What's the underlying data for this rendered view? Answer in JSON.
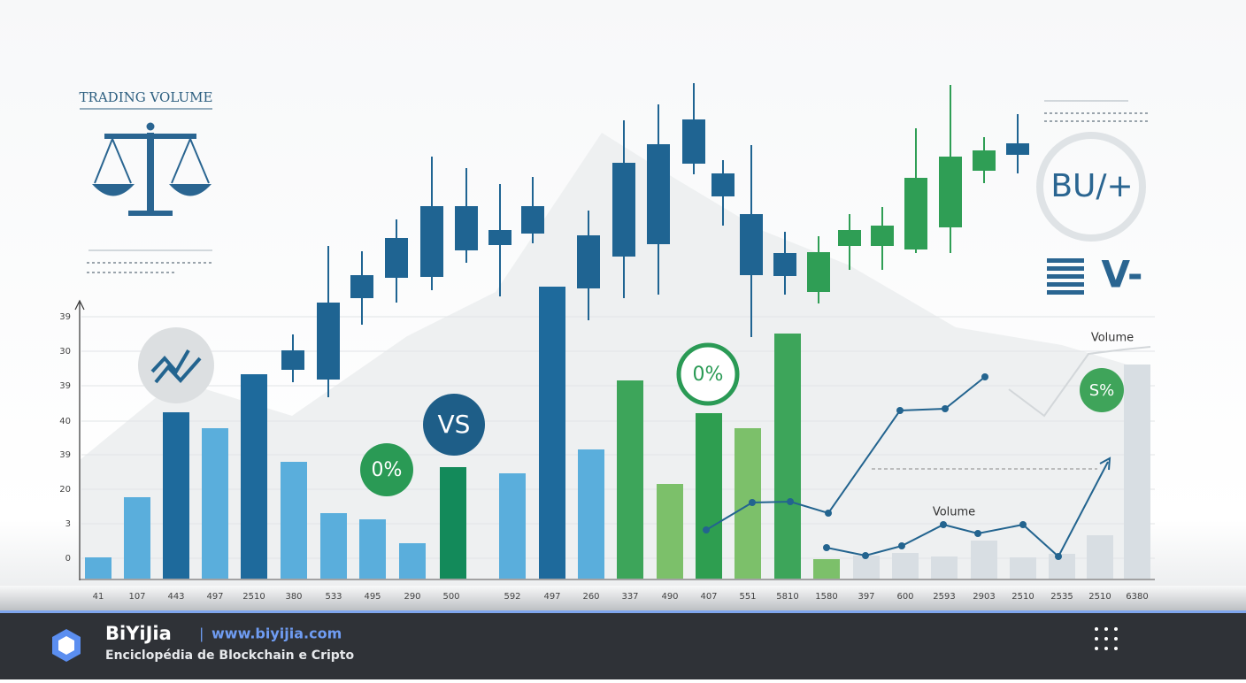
{
  "header": {
    "title": "TRADING VOLUME"
  },
  "y_axis_labels": [
    "39",
    "30",
    "39",
    "40",
    "39",
    "20",
    "3",
    "0"
  ],
  "x_axis_labels": [
    "41",
    "107",
    "443",
    "497",
    "2510",
    "380",
    "533",
    "495",
    "290",
    "500",
    "592",
    "497",
    "260",
    "337",
    "490",
    "407",
    "551",
    "5810",
    "1580",
    "397",
    "600",
    "2593",
    "2903",
    "2510",
    "2535",
    "2510",
    "6380"
  ],
  "badges": {
    "vs": "VS",
    "percent_left": "0%",
    "percent_middle": "0%",
    "percent_right": "S%",
    "top_right": "BU/+",
    "menu": "V-"
  },
  "line_labels": [
    "Volume",
    "Volume"
  ],
  "footer": {
    "brand": "BiYiJia",
    "separator": "|",
    "url": "www.biyijia.com",
    "tagline": "Enciclopédia de Blockchain e Cripto"
  }
}
